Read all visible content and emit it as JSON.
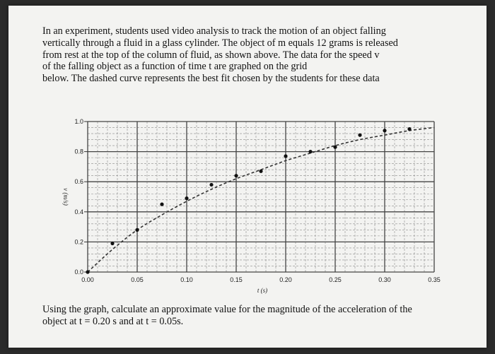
{
  "problem": {
    "intro": "In an experiment, students used video analysis to track the motion of an object falling\nvertically through a fluid in a glass cylinder. The object of m equals 12 grams is released\nfrom rest at the top of the column of fluid, as shown above. The data for the speed v\nof the falling object as a function of time t are graphed on the grid\nbelow. The dashed curve represents the best fit chosen by the students for these data",
    "question": "Using the graph, calculate an approximate value for the magnitude of the acceleration of the\nobject at  t = 0.20 s and at t = 0.05s."
  },
  "chart_data": {
    "type": "scatter",
    "xlabel": "t (s)",
    "ylabel": "v (m/s)",
    "xlim": [
      0,
      0.35
    ],
    "ylim": [
      0,
      1.0
    ],
    "x_ticks": [
      "0.00",
      "0.05",
      "0.10",
      "0.15",
      "0.20",
      "0.25",
      "0.30",
      "0.35"
    ],
    "y_ticks": [
      "0.0",
      "0.2",
      "0.4",
      "0.6",
      "0.8",
      "1.0"
    ],
    "grid": true,
    "series": [
      {
        "style": "points",
        "x": [
          0.0,
          0.025,
          0.05,
          0.075,
          0.1,
          0.125,
          0.15,
          0.175,
          0.2,
          0.225,
          0.25,
          0.275,
          0.3,
          0.325
        ],
        "y": [
          0.0,
          0.19,
          0.28,
          0.45,
          0.49,
          0.58,
          0.64,
          0.67,
          0.77,
          0.8,
          0.83,
          0.91,
          0.94,
          0.95
        ]
      },
      {
        "style": "dashed-fit",
        "x": [
          0.0,
          0.025,
          0.05,
          0.075,
          0.1,
          0.125,
          0.15,
          0.175,
          0.2,
          0.225,
          0.25,
          0.275,
          0.3,
          0.325,
          0.35
        ],
        "y": [
          0.0,
          0.15,
          0.28,
          0.38,
          0.47,
          0.55,
          0.62,
          0.68,
          0.74,
          0.79,
          0.84,
          0.88,
          0.91,
          0.94,
          0.96
        ]
      }
    ]
  }
}
